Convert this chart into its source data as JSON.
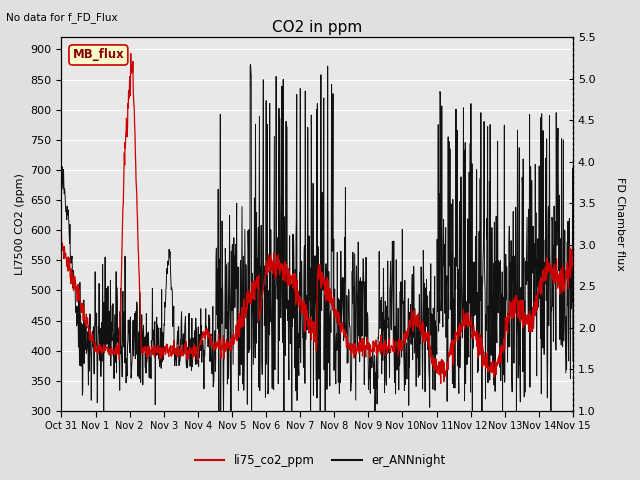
{
  "title": "CO2 in ppm",
  "top_left_text": "No data for f_FD_Flux",
  "legend_box_text": "MB_flux",
  "ylabel_left": "LI7500 CO2 (ppm)",
  "ylabel_right": "FD Chamber flux",
  "ylim_left": [
    300,
    920
  ],
  "ylim_right": [
    1.0,
    5.5
  ],
  "yticks_left": [
    300,
    350,
    400,
    450,
    500,
    550,
    600,
    650,
    700,
    750,
    800,
    850,
    900
  ],
  "yticks_right": [
    1.0,
    1.5,
    2.0,
    2.5,
    3.0,
    3.5,
    4.0,
    4.5,
    5.0,
    5.5
  ],
  "xtick_labels": [
    "Oct 31",
    "Nov 1",
    "Nov 2",
    "Nov 3",
    "Nov 4",
    "Nov 5",
    "Nov 6",
    "Nov 7",
    "Nov 8",
    "Nov 9",
    "Nov 10",
    "Nov 11",
    "Nov 12",
    "Nov 13",
    "Nov 14",
    "Nov 15"
  ],
  "line1_color": "#cc0000",
  "line2_color": "#111111",
  "line1_label": "li75_co2_ppm",
  "line2_label": "er_ANNnight",
  "fig_facecolor": "#e0e0e0",
  "plot_facecolor": "#e8e8e8",
  "grid_color": "#ffffff",
  "title_fontsize": 11,
  "label_fontsize": 8,
  "tick_fontsize": 8,
  "legend_box_facecolor": "#ffffcc",
  "legend_box_edgecolor": "#cc0000"
}
